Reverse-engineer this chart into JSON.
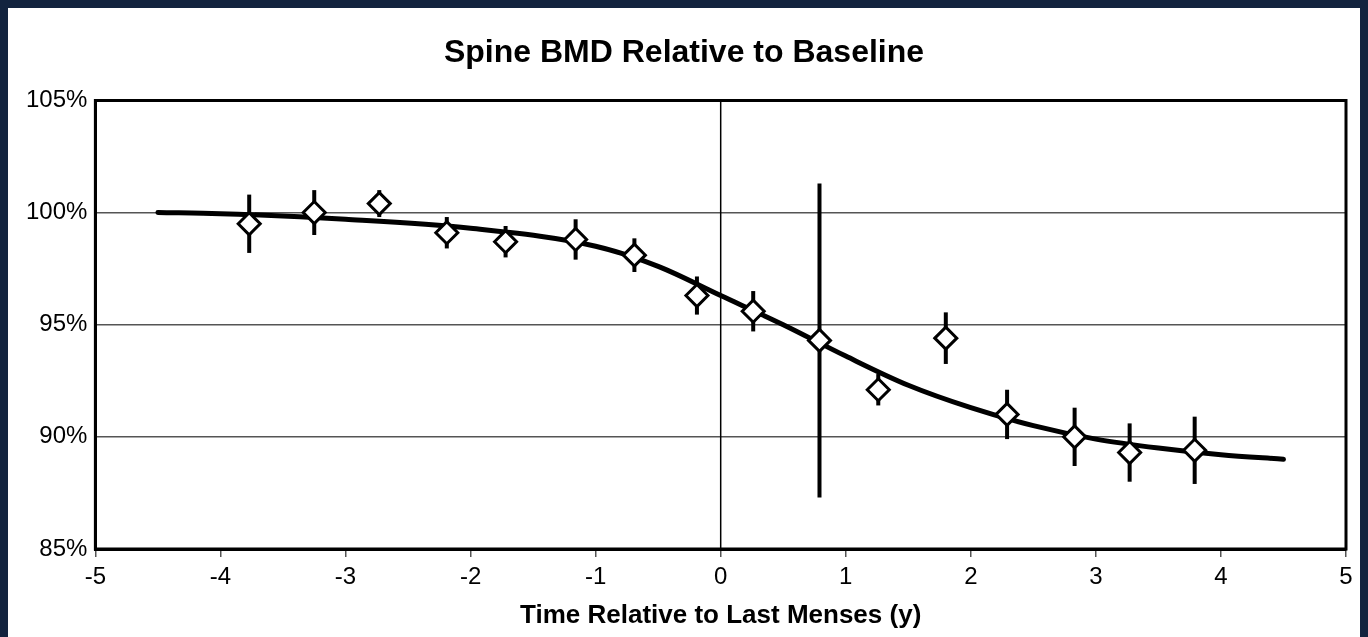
{
  "chart_data": {
    "type": "scatter",
    "title": "Spine BMD Relative to Baseline",
    "xlabel": "Time Relative to Last Menses (y)",
    "xlim": [
      -5,
      5
    ],
    "xticks": [
      -5,
      -4,
      -3,
      -2,
      -1,
      0,
      1,
      2,
      3,
      4,
      5
    ],
    "ylim": [
      85,
      105
    ],
    "yticks": [
      {
        "value": 85,
        "label": "85%"
      },
      {
        "value": 90,
        "label": "90%"
      },
      {
        "value": 95,
        "label": "95%"
      },
      {
        "value": 100,
        "label": "100%"
      },
      {
        "value": 105,
        "label": "105%"
      }
    ],
    "grid": "y",
    "legend": false,
    "ref_lines": [
      {
        "axis": "x",
        "value": 0,
        "color": "#000000"
      }
    ],
    "series": [
      {
        "color": "#000000",
        "marker": "diamond",
        "x": [
          -3.77,
          -3.25,
          -2.73,
          -2.19,
          -1.72,
          -1.16,
          -0.69,
          -0.19,
          0.26,
          0.79,
          1.26,
          1.8,
          2.29,
          2.83,
          3.27,
          3.79
        ],
        "values": [
          99.5,
          100.0,
          100.4,
          99.1,
          98.7,
          98.8,
          98.1,
          96.3,
          95.6,
          94.3,
          92.1,
          94.4,
          91.0,
          90.0,
          89.3,
          89.4
        ],
        "errors": [
          1.3,
          1.0,
          0.6,
          0.7,
          0.7,
          0.9,
          0.75,
          0.85,
          0.9,
          7.0,
          0.7,
          1.15,
          1.1,
          1.3,
          1.3,
          1.5
        ]
      },
      {
        "type": "line",
        "color": "#000000",
        "marker": "none",
        "line_style": "solid",
        "x": [
          -4.5,
          -4,
          -3,
          -2,
          -1,
          -0.5,
          0,
          0.5,
          1,
          1.5,
          2,
          2.5,
          3,
          3.5,
          4,
          4.5
        ],
        "values": [
          100,
          99.95,
          99.7,
          99.3,
          98.5,
          97.6,
          96.3,
          95.0,
          93.6,
          92.3,
          91.3,
          90.5,
          89.9,
          89.5,
          89.2,
          89.0
        ]
      }
    ]
  }
}
